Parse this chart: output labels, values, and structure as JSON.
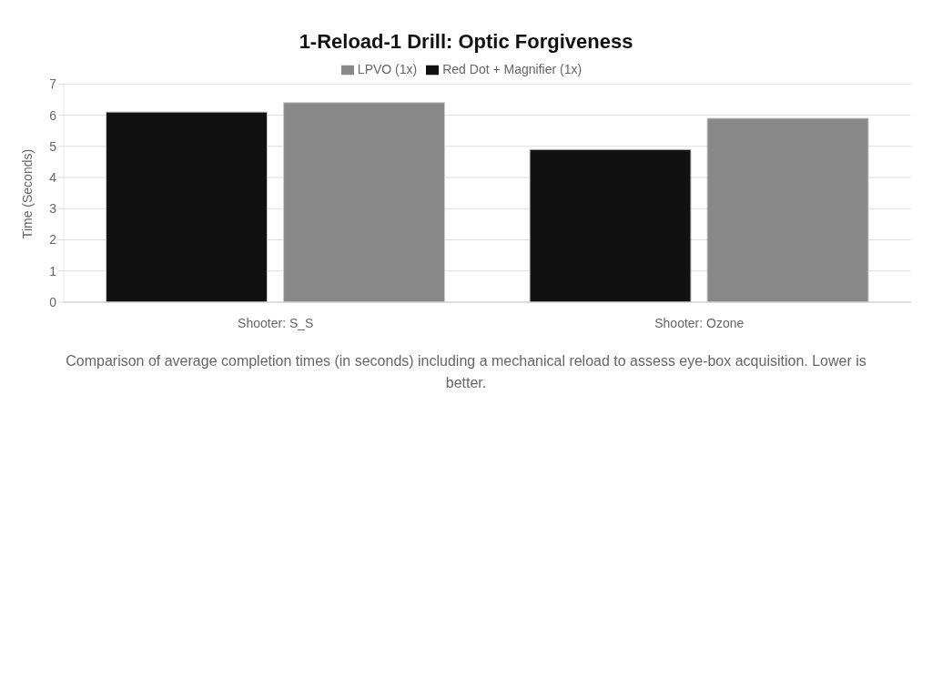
{
  "chart_data": {
    "type": "bar",
    "title": "1-Reload-1 Drill: Optic Forgiveness",
    "ylabel": "Time (Seconds)",
    "categories": [
      "Shooter: S_S",
      "Shooter: Ozone"
    ],
    "series": [
      {
        "name": "Red Dot + Magnifier (1x)",
        "color": "#111111",
        "values": [
          6.1,
          4.9
        ]
      },
      {
        "name": "LPVO (1x)",
        "color": "#888888",
        "values": [
          6.4,
          5.9
        ]
      }
    ],
    "ylim": [
      0,
      7
    ],
    "yticks": [
      0,
      1,
      2,
      3,
      4,
      5,
      6,
      7
    ],
    "grid": "y",
    "legend": "top",
    "annotations": [
      "Comparison of average completion times (in seconds) including a mechanical reload to assess eye-box acquisition. Lower is better."
    ]
  }
}
